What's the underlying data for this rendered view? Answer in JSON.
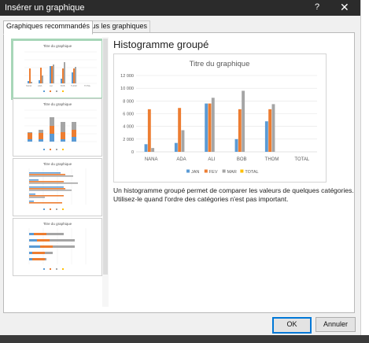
{
  "window": {
    "title": "Insérer un graphique",
    "help": "?",
    "close": "✕"
  },
  "tabs": [
    {
      "label": "Graphiques recommandés",
      "active": true
    },
    {
      "label": "Tous les graphiques",
      "active": false
    }
  ],
  "thumbnails": [
    {
      "title": "Titre du graphique",
      "kind": "clustered-column",
      "selected": true
    },
    {
      "title": "Titre du graphique",
      "kind": "stacked-column",
      "selected": false
    },
    {
      "title": "Titre du graphique",
      "kind": "clustered-bar",
      "selected": false
    },
    {
      "title": "Titre du graphique",
      "kind": "stacked-bar",
      "selected": false
    }
  ],
  "preview_heading": "Histogramme groupé",
  "description": [
    "Un histogramme groupé permet de comparer les valeurs de quelques catégories.",
    "Utilisez-le quand l'ordre des catégories n'est pas important."
  ],
  "buttons": {
    "ok": "OK",
    "cancel": "Annuler"
  },
  "colors": {
    "JAN": "#5b9bd5",
    "FEV": "#ed7d31",
    "MAR": "#a5a5a5",
    "TOTAL": "#ffc000"
  },
  "chart_data": {
    "type": "bar",
    "title": "Titre du graphique",
    "categories": [
      "NANA",
      "ADA",
      "ALI",
      "BOB",
      "THOM",
      "TOTAL"
    ],
    "ylim": [
      0,
      12000
    ],
    "yticks": [
      "0",
      "2 000",
      "4 000",
      "6 000",
      "8 000",
      "10 000",
      "12 000"
    ],
    "series": [
      {
        "name": "JAN",
        "values": [
          1200,
          1400,
          7600,
          2000,
          4800,
          0
        ]
      },
      {
        "name": "FEV",
        "values": [
          6700,
          6900,
          7600,
          6700,
          6700,
          0
        ]
      },
      {
        "name": "MAR",
        "values": [
          600,
          3400,
          8500,
          9600,
          7500,
          0
        ]
      },
      {
        "name": "TOTAL",
        "values": [
          0,
          0,
          0,
          0,
          0,
          0
        ]
      }
    ],
    "legend": "bottom",
    "grid": true
  }
}
